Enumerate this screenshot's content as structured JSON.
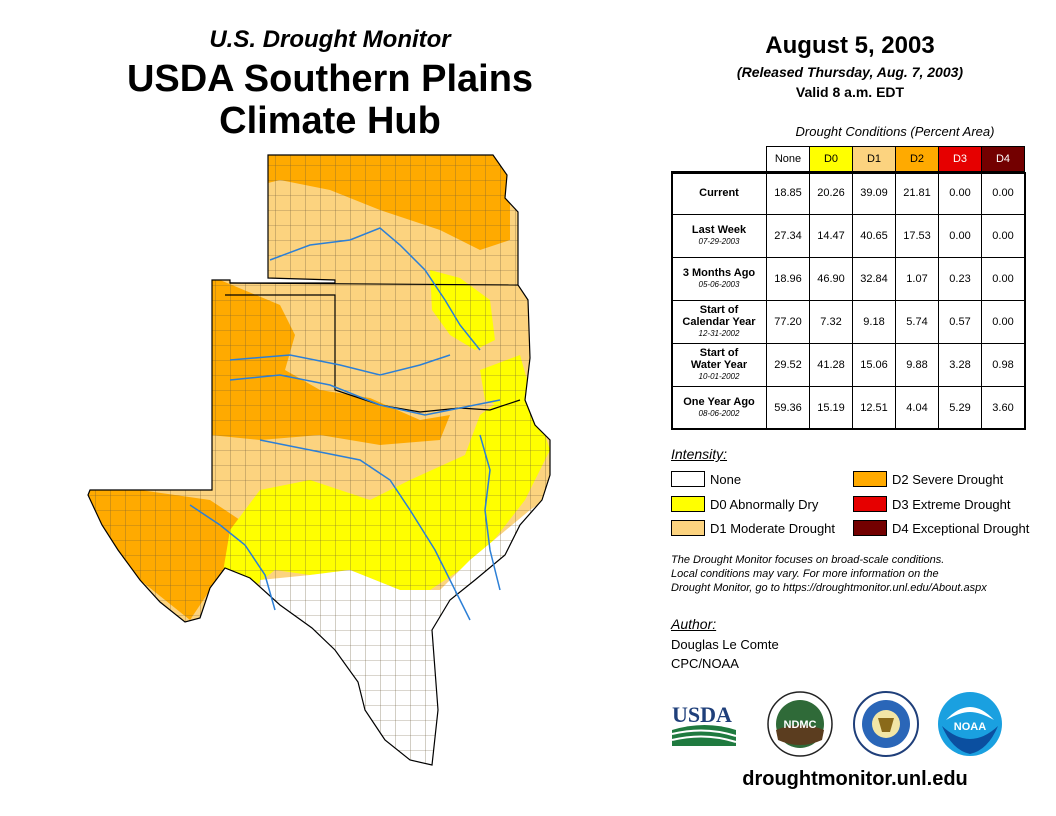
{
  "header": {
    "subtitle": "U.S. Drought Monitor",
    "region_line1": "USDA Southern Plains",
    "region_line2": "Climate Hub"
  },
  "date": {
    "main": "August 5, 2003",
    "released": "(Released Thursday, Aug. 7, 2003)",
    "valid": "Valid 8 a.m. EDT"
  },
  "table": {
    "caption": "Drought Conditions (Percent Area)",
    "columns": [
      "None",
      "D0",
      "D1",
      "D2",
      "D3",
      "D4"
    ],
    "column_colors": [
      "#ffffff",
      "#ffff00",
      "#fcd37f",
      "#ffaa00",
      "#e60000",
      "#730000"
    ],
    "rows": [
      {
        "label": "Current",
        "date": "",
        "values": [
          "18.85",
          "20.26",
          "39.09",
          "21.81",
          "0.00",
          "0.00"
        ]
      },
      {
        "label": "Last Week",
        "date": "07-29-2003",
        "values": [
          "27.34",
          "14.47",
          "40.65",
          "17.53",
          "0.00",
          "0.00"
        ]
      },
      {
        "label": "3 Months Ago",
        "date": "05-06-2003",
        "values": [
          "18.96",
          "46.90",
          "32.84",
          "1.07",
          "0.23",
          "0.00"
        ]
      },
      {
        "label": "Start of Calendar Year",
        "date": "12-31-2002",
        "values": [
          "77.20",
          "7.32",
          "9.18",
          "5.74",
          "0.57",
          "0.00"
        ]
      },
      {
        "label": "Start of Water Year",
        "date": "10-01-2002",
        "values": [
          "29.52",
          "41.28",
          "15.06",
          "9.88",
          "3.28",
          "0.98"
        ]
      },
      {
        "label": "One Year Ago",
        "date": "08-06-2002",
        "values": [
          "59.36",
          "15.19",
          "12.51",
          "4.04",
          "5.29",
          "3.60"
        ]
      }
    ]
  },
  "legend": {
    "title": "Intensity:",
    "items": [
      {
        "label": "None",
        "color": "#ffffff"
      },
      {
        "label": "D0 Abnormally Dry",
        "color": "#ffff00"
      },
      {
        "label": "D1 Moderate Drought",
        "color": "#fcd37f"
      },
      {
        "label": "D2 Severe Drought",
        "color": "#ffaa00"
      },
      {
        "label": "D3 Extreme Drought",
        "color": "#e60000"
      },
      {
        "label": "D4 Exceptional Drought",
        "color": "#730000"
      }
    ]
  },
  "note": {
    "line1": "The Drought Monitor focuses on broad-scale conditions.",
    "line2": "Local conditions may vary. For more information on the",
    "line3": "Drought Monitor, go to https://droughtmonitor.unl.edu/About.aspx"
  },
  "author": {
    "label": "Author:",
    "name": "Douglas Le Comte",
    "org": "CPC/NOAA"
  },
  "logos": {
    "usda": "USDA",
    "ndmc": "NDMC",
    "noaa": "NOAA"
  },
  "footer": {
    "url": "droughtmonitor.unl.edu"
  }
}
